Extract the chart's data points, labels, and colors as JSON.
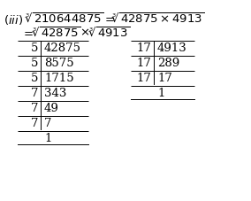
{
  "bg_color": "#ffffff",
  "text_color": "#000000",
  "table1": {
    "divisors": [
      "5",
      "5",
      "5",
      "7",
      "7",
      "7",
      ""
    ],
    "dividends": [
      "42875",
      "8575",
      "1715",
      "343",
      "49",
      "7",
      "1"
    ]
  },
  "table2": {
    "divisors": [
      "17",
      "17",
      "17",
      ""
    ],
    "dividends": [
      "4913",
      "289",
      "17",
      "1"
    ]
  },
  "figsize": [
    2.84,
    2.28
  ],
  "dpi": 100
}
